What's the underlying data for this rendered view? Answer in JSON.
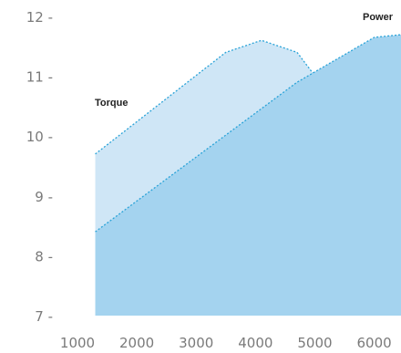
{
  "chart_data": {
    "type": "area",
    "xticks": [
      "1000",
      "2000",
      "3000",
      "4000",
      "5000",
      "6000"
    ],
    "yticks": [
      "7 -",
      "8 -",
      "9 -",
      "10 -",
      "11 -",
      "12 -"
    ],
    "xlim": [
      1000,
      6000
    ],
    "ylim": [
      7,
      12
    ],
    "series": [
      {
        "name": "Torque",
        "x": [
          1300,
          3500,
          4100,
          4700,
          6000
        ],
        "y": [
          9.7,
          11.4,
          11.6,
          11.4,
          9.7
        ],
        "fill": "#cfe6f6",
        "stroke": "#2aa3d8"
      },
      {
        "name": "Power",
        "x": [
          1300,
          4700,
          6000
        ],
        "y": [
          8.4,
          10.9,
          11.65
        ],
        "fill": "#a4d3ef",
        "stroke": "#2aa3d8"
      }
    ]
  }
}
